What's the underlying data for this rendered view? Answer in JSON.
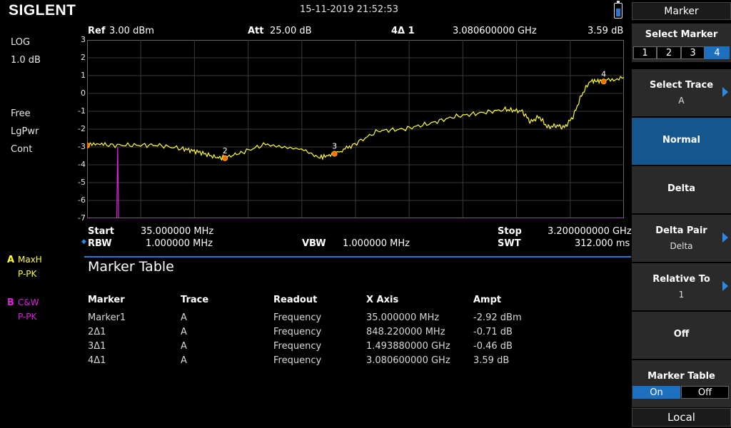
{
  "brand": "SIGLENT",
  "datetime": "15-11-2019   21:52:53",
  "left_info": {
    "scale": "LOG",
    "scale_div": "1.0 dB",
    "trig": "Free",
    "det": "LgPwr",
    "sweep": "Cont"
  },
  "traces": {
    "a": {
      "letter": "A",
      "mode": "MaxH",
      "det": "P-PK",
      "color": "#ffff33"
    },
    "b": {
      "letter": "B",
      "mode": "C&W",
      "det": "P-PK",
      "color": "#e020e0"
    }
  },
  "header": {
    "ref_label": "Ref",
    "ref_value": "3.00 dBm",
    "att_label": "Att",
    "att_value": "25.00 dB",
    "marker_id": "4Δ 1",
    "marker_freq": "3.080600000 GHz",
    "marker_ampt": "3.59 dB"
  },
  "y_ticks": [
    "3",
    "2",
    "1",
    "0",
    "-1",
    "-2",
    "-3",
    "-4",
    "-5",
    "-6",
    "-7"
  ],
  "bottom": {
    "start_label": "Start",
    "start_value": "35.000000 MHz",
    "stop_label": "Stop",
    "stop_value": "3.200000000 GHz",
    "rbw_label": "RBW",
    "rbw_value": "1.000000 MHz",
    "vbw_label": "VBW",
    "vbw_value": "1.000000 MHz",
    "swt_label": "SWT",
    "swt_value": "312.000 ms"
  },
  "marker_table": {
    "title": "Marker Table",
    "headers": [
      "Marker",
      "Trace",
      "Readout",
      "X Axis",
      "Ampt"
    ],
    "rows": [
      [
        "Marker1",
        "A",
        "Frequency",
        "35.000000 MHz",
        "-2.92 dBm"
      ],
      [
        "2Δ1",
        "A",
        "Frequency",
        "848.220000 MHz",
        "-0.71 dB"
      ],
      [
        "3Δ1",
        "A",
        "Frequency",
        "1.493880000 GHz",
        "-0.46 dB"
      ],
      [
        "4Δ1",
        "A",
        "Frequency",
        "3.080600000 GHz",
        "3.59 dB"
      ]
    ]
  },
  "chart_data": {
    "type": "line",
    "xlabel": "",
    "ylabel": "",
    "xlim_mhz": [
      35,
      3200
    ],
    "ylim_db": [
      -7,
      3
    ],
    "series": [
      {
        "color": "#ffff33",
        "x_mhz": [
          35,
          150,
          300,
          450,
          600,
          700,
          800,
          848,
          950,
          1100,
          1300,
          1400,
          1494,
          1600,
          1750,
          1900,
          2050,
          2200,
          2350,
          2500,
          2600,
          2650,
          2700,
          2750,
          2800,
          2850,
          2900,
          2950,
          3000,
          3080,
          3200
        ],
        "y_db": [
          -2.9,
          -2.9,
          -2.9,
          -2.9,
          -3.1,
          -3.3,
          -3.6,
          -3.6,
          -3.3,
          -2.8,
          -3.1,
          -3.6,
          -3.4,
          -2.9,
          -2.1,
          -2.0,
          -1.7,
          -1.3,
          -1.1,
          -0.9,
          -1.0,
          -1.6,
          -1.3,
          -1.9,
          -1.8,
          -1.9,
          -1.3,
          -0.1,
          0.7,
          0.7,
          0.9
        ]
      },
      {
        "color": "#e020e0",
        "x_mhz": [
          35,
          200,
          210,
          215,
          218,
          220,
          225,
          3200
        ],
        "y_db": [
          -7,
          -7,
          -7,
          -3.0,
          -5.0,
          -7,
          -7,
          -7
        ]
      }
    ],
    "markers": [
      {
        "label": "",
        "x_mhz": 35,
        "y_db": -2.92
      },
      {
        "label": "2",
        "x_mhz": 848.22,
        "y_db": -3.63
      },
      {
        "label": "3",
        "x_mhz": 1493.88,
        "y_db": -3.38
      },
      {
        "label": "4",
        "x_mhz": 3080.6,
        "y_db": 0.67
      }
    ]
  },
  "panel": {
    "title": "Marker",
    "select_marker": {
      "label": "Select Marker",
      "options": [
        "1",
        "2",
        "3",
        "4"
      ],
      "selected": "4"
    },
    "select_trace": {
      "label": "Select Trace",
      "value": "A"
    },
    "normal": "Normal",
    "delta": "Delta",
    "delta_pair": {
      "label": "Delta Pair",
      "value": "Delta"
    },
    "relative_to": {
      "label": "Relative To",
      "value": "1"
    },
    "off": "Off",
    "marker_table": {
      "label": "Marker Table",
      "on": "On",
      "off": "Off"
    },
    "local": "Local"
  }
}
